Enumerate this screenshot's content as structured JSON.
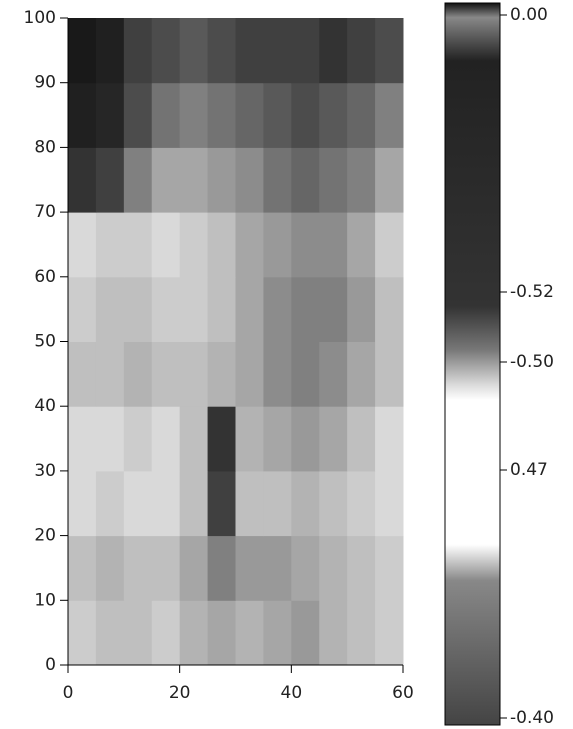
{
  "chart_data": {
    "type": "heatmap",
    "xlim": [
      0,
      60
    ],
    "xticks": [
      0,
      20,
      40,
      60
    ],
    "ylim": [
      0,
      100
    ],
    "yticks": [
      0,
      10,
      20,
      30,
      40,
      50,
      60,
      70,
      80,
      90,
      100
    ],
    "zlim": [
      -0.4,
      0
    ],
    "z": [
      [
        -0.32,
        -0.3,
        -0.3,
        -0.32,
        -0.28,
        -0.26,
        -0.28,
        -0.26,
        -0.24,
        -0.28,
        -0.3,
        -0.32
      ],
      [
        -0.3,
        -0.28,
        -0.3,
        -0.3,
        -0.26,
        -0.2,
        -0.24,
        -0.24,
        -0.26,
        -0.28,
        -0.3,
        -0.32
      ],
      [
        -0.34,
        -0.32,
        -0.34,
        -0.34,
        -0.3,
        -0.1,
        -0.3,
        -0.3,
        -0.28,
        -0.3,
        -0.32,
        -0.34
      ],
      [
        -0.34,
        -0.34,
        -0.32,
        -0.34,
        -0.3,
        -0.08,
        -0.28,
        -0.26,
        -0.24,
        -0.26,
        -0.3,
        -0.34
      ],
      [
        -0.3,
        -0.3,
        -0.28,
        -0.3,
        -0.3,
        -0.28,
        -0.26,
        -0.22,
        -0.2,
        -0.22,
        -0.26,
        -0.3
      ],
      [
        -0.32,
        -0.3,
        -0.3,
        -0.32,
        -0.32,
        -0.3,
        -0.26,
        -0.22,
        -0.2,
        -0.2,
        -0.24,
        -0.3
      ],
      [
        -0.34,
        -0.32,
        -0.32,
        -0.34,
        -0.32,
        -0.3,
        -0.26,
        -0.24,
        -0.22,
        -0.22,
        -0.26,
        -0.32
      ],
      [
        -0.08,
        -0.1,
        -0.2,
        -0.26,
        -0.26,
        -0.24,
        -0.22,
        -0.18,
        -0.16,
        -0.18,
        -0.2,
        -0.26
      ],
      [
        -0.05,
        -0.06,
        -0.12,
        -0.18,
        -0.2,
        -0.18,
        -0.16,
        -0.14,
        -0.12,
        -0.14,
        -0.16,
        -0.2
      ],
      [
        -0.04,
        -0.05,
        -0.1,
        -0.12,
        -0.14,
        -0.12,
        -0.1,
        -0.1,
        -0.1,
        -0.08,
        -0.1,
        -0.12
      ]
    ],
    "colorbar_labels": [
      "0.00",
      "-0.52",
      "-0.50",
      "0.47",
      "-0.40"
    ]
  }
}
